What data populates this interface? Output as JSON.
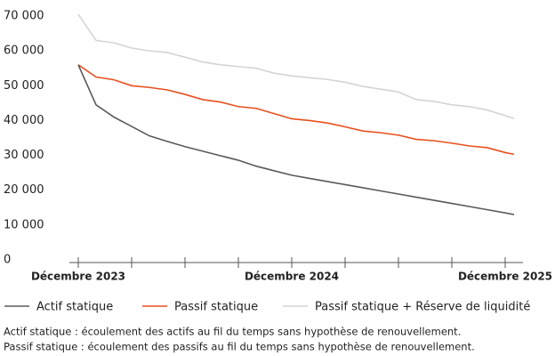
{
  "chart_data": {
    "type": "line",
    "x": [
      0,
      1,
      2,
      3,
      4,
      5,
      6,
      7,
      8,
      9,
      10,
      11,
      12,
      13,
      14,
      15,
      16,
      17,
      18,
      19,
      20,
      21,
      22,
      23,
      24,
      24.5
    ],
    "series": [
      {
        "name": "Actif statique",
        "color": "#5a5a5a",
        "values": [
          56000,
          44500,
          41000,
          38300,
          35600,
          34000,
          32500,
          31200,
          29900,
          28600,
          26900,
          25600,
          24300,
          23400,
          22500,
          21600,
          20700,
          19800,
          18900,
          18000,
          17100,
          16200,
          15300,
          14400,
          13500,
          13000
        ]
      },
      {
        "name": "Passif statique",
        "color": "#e8501e",
        "values": [
          56000,
          52500,
          51700,
          50000,
          49500,
          48800,
          47500,
          46000,
          45300,
          44000,
          43500,
          42000,
          40500,
          40000,
          39300,
          38200,
          37000,
          36500,
          35800,
          34600,
          34200,
          33500,
          32700,
          32200,
          30800,
          30300
        ]
      },
      {
        "name": "Passif statique + Réserve de liquidité",
        "color": "#d4d4d4",
        "values": [
          70500,
          63000,
          62300,
          60800,
          60000,
          59500,
          58200,
          56800,
          56000,
          55500,
          55000,
          53600,
          52800,
          52300,
          51800,
          51000,
          49800,
          49000,
          48200,
          46000,
          45500,
          44500,
          44000,
          43000,
          41400,
          40600
        ]
      }
    ],
    "xlim": [
      -0.5,
      25
    ],
    "xticks": [
      0,
      3,
      6,
      9,
      12,
      15,
      18,
      21,
      24
    ],
    "xlabels": [
      {
        "value": 0,
        "label": "Décembre 2023"
      },
      {
        "value": 12,
        "label": "Décembre 2024"
      },
      {
        "value": 24,
        "label": "Décembre 2025"
      }
    ],
    "ylim": [
      0,
      70000
    ],
    "yticks": [
      {
        "value": 0,
        "label": "0"
      },
      {
        "value": 10000,
        "label": "10 000"
      },
      {
        "value": 20000,
        "label": "20 000"
      },
      {
        "value": 30000,
        "label": "30 000"
      },
      {
        "value": 40000,
        "label": "40 000"
      },
      {
        "value": 50000,
        "label": "50 000"
      },
      {
        "value": 60000,
        "label": "60 000"
      },
      {
        "value": 70000,
        "label": "70 000"
      }
    ],
    "legend": "bottom",
    "notes": [
      "Actif statique : écoulement des actifs au fil du temps sans hypothèse de renouvellement.",
      "Passif statique : écoulement des passifs au fil du temps sans hypothèse de renouvellement."
    ]
  }
}
